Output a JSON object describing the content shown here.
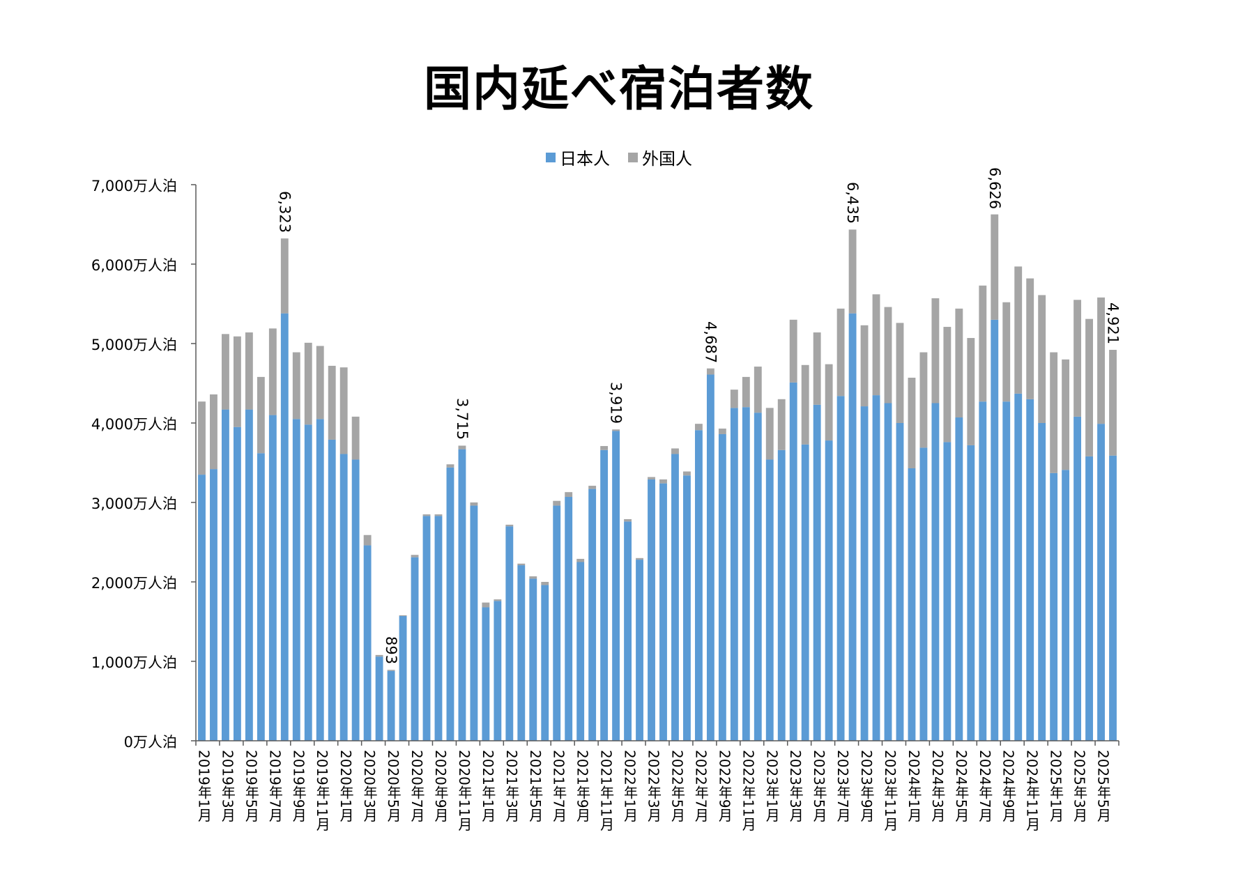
{
  "chart_data": {
    "type": "bar",
    "stacked": true,
    "title": "国内延べ宿泊者数",
    "xlabel": "",
    "ylabel": "",
    "ylim": [
      0,
      7000
    ],
    "y_ticks": [
      0,
      1000,
      2000,
      3000,
      4000,
      5000,
      6000,
      7000
    ],
    "y_tick_labels": [
      "0万人泊",
      "1,000万人泊",
      "2,000万人泊",
      "3,000万人泊",
      "4,000万人泊",
      "5,000万人泊",
      "6,000万人泊",
      "7,000万人泊"
    ],
    "grid": false,
    "legend_position": "top",
    "categories": [
      "2019年1月",
      "2019年2月",
      "2019年3月",
      "2019年4月",
      "2019年5月",
      "2019年6月",
      "2019年7月",
      "2019年8月",
      "2019年9月",
      "2019年10月",
      "2019年11月",
      "2019年12月",
      "2020年1月",
      "2020年2月",
      "2020年3月",
      "2020年4月",
      "2020年5月",
      "2020年6月",
      "2020年7月",
      "2020年8月",
      "2020年9月",
      "2020年10月",
      "2020年11月",
      "2020年12月",
      "2021年1月",
      "2021年2月",
      "2021年3月",
      "2021年4月",
      "2021年5月",
      "2021年6月",
      "2021年7月",
      "2021年8月",
      "2021年9月",
      "2021年10月",
      "2021年11月",
      "2021年12月",
      "2022年1月",
      "2022年2月",
      "2022年3月",
      "2022年4月",
      "2022年5月",
      "2022年6月",
      "2022年7月",
      "2022年8月",
      "2022年9月",
      "2022年10月",
      "2022年11月",
      "2022年12月",
      "2023年1月",
      "2023年2月",
      "2023年3月",
      "2023年4月",
      "2023年5月",
      "2023年6月",
      "2023年7月",
      "2023年8月",
      "2023年9月",
      "2023年10月",
      "2023年11月",
      "2023年12月",
      "2024年1月",
      "2024年2月",
      "2024年3月",
      "2024年4月",
      "2024年5月",
      "2024年6月",
      "2024年7月",
      "2024年8月",
      "2024年9月",
      "2024年10月",
      "2024年11月",
      "2024年12月",
      "2025年1月",
      "2025年2月",
      "2025年3月",
      "2025年4月",
      "2025年5月",
      "2025年6月"
    ],
    "x_tick_labels": [
      "2019年1月",
      "2019年3月",
      "2019年5月",
      "2019年7月",
      "2019年9月",
      "2019年11月",
      "2020年1月",
      "2020年3月",
      "2020年5月",
      "2020年7月",
      "2020年9月",
      "2020年11月",
      "2021年1月",
      "2021年3月",
      "2021年5月",
      "2021年7月",
      "2021年9月",
      "2021年11月",
      "2022年1月",
      "2022年3月",
      "2022年5月",
      "2022年7月",
      "2022年9月",
      "2022年11月",
      "2023年1月",
      "2023年3月",
      "2023年5月",
      "2023年7月",
      "2023年9月",
      "2023年11月",
      "2024年1月",
      "2024年3月",
      "2024年5月",
      "2024年7月",
      "2024年9月",
      "2024年11月",
      "2025年1月",
      "2025年3月",
      "2025年5月"
    ],
    "series": [
      {
        "name": "日本人",
        "color": "#5b9bd5",
        "values": [
          3350,
          3420,
          4170,
          3950,
          4170,
          3620,
          4100,
          5380,
          4050,
          3980,
          4050,
          3790,
          3610,
          3540,
          2460,
          1060,
          880,
          1570,
          2310,
          2830,
          2830,
          3440,
          3670,
          2960,
          1680,
          1760,
          2700,
          2210,
          2040,
          1960,
          2960,
          3070,
          2250,
          3170,
          3660,
          3900,
          2760,
          2280,
          3290,
          3240,
          3610,
          3340,
          3910,
          4610,
          3860,
          4190,
          4200,
          4130,
          3540,
          3660,
          4510,
          3730,
          4230,
          3780,
          4340,
          5380,
          4210,
          4350,
          4250,
          4000,
          3430,
          3690,
          4250,
          3760,
          4070,
          3720,
          4270,
          5300,
          4270,
          4370,
          4300,
          4000,
          3370,
          3410,
          4080,
          3580,
          3990,
          3590
        ]
      },
      {
        "name": "外国人",
        "color": "#a5a5a5",
        "values": [
          920,
          940,
          950,
          1140,
          970,
          960,
          1090,
          943,
          840,
          1030,
          920,
          930,
          1090,
          540,
          130,
          20,
          13,
          10,
          30,
          20,
          20,
          40,
          45,
          40,
          60,
          20,
          20,
          20,
          30,
          40,
          60,
          60,
          40,
          40,
          50,
          19,
          30,
          20,
          30,
          50,
          70,
          50,
          80,
          77,
          70,
          230,
          380,
          580,
          650,
          640,
          790,
          1000,
          910,
          960,
          1100,
          1055,
          1020,
          1270,
          1210,
          1260,
          1140,
          1200,
          1320,
          1450,
          1370,
          1350,
          1460,
          1326,
          1250,
          1600,
          1520,
          1610,
          1520,
          1390,
          1470,
          1730,
          1590,
          1331
        ]
      }
    ],
    "data_labels": [
      {
        "category": "2019年8月",
        "text": "6,323"
      },
      {
        "category": "2020年5月",
        "text": "893"
      },
      {
        "category": "2020年11月",
        "text": "3,715"
      },
      {
        "category": "2021年12月",
        "text": "3,919"
      },
      {
        "category": "2022年8月",
        "text": "4,687"
      },
      {
        "category": "2023年8月",
        "text": "6,435"
      },
      {
        "category": "2024年8月",
        "text": "6,626"
      },
      {
        "category": "2025年6月",
        "text": "4,921"
      }
    ]
  }
}
